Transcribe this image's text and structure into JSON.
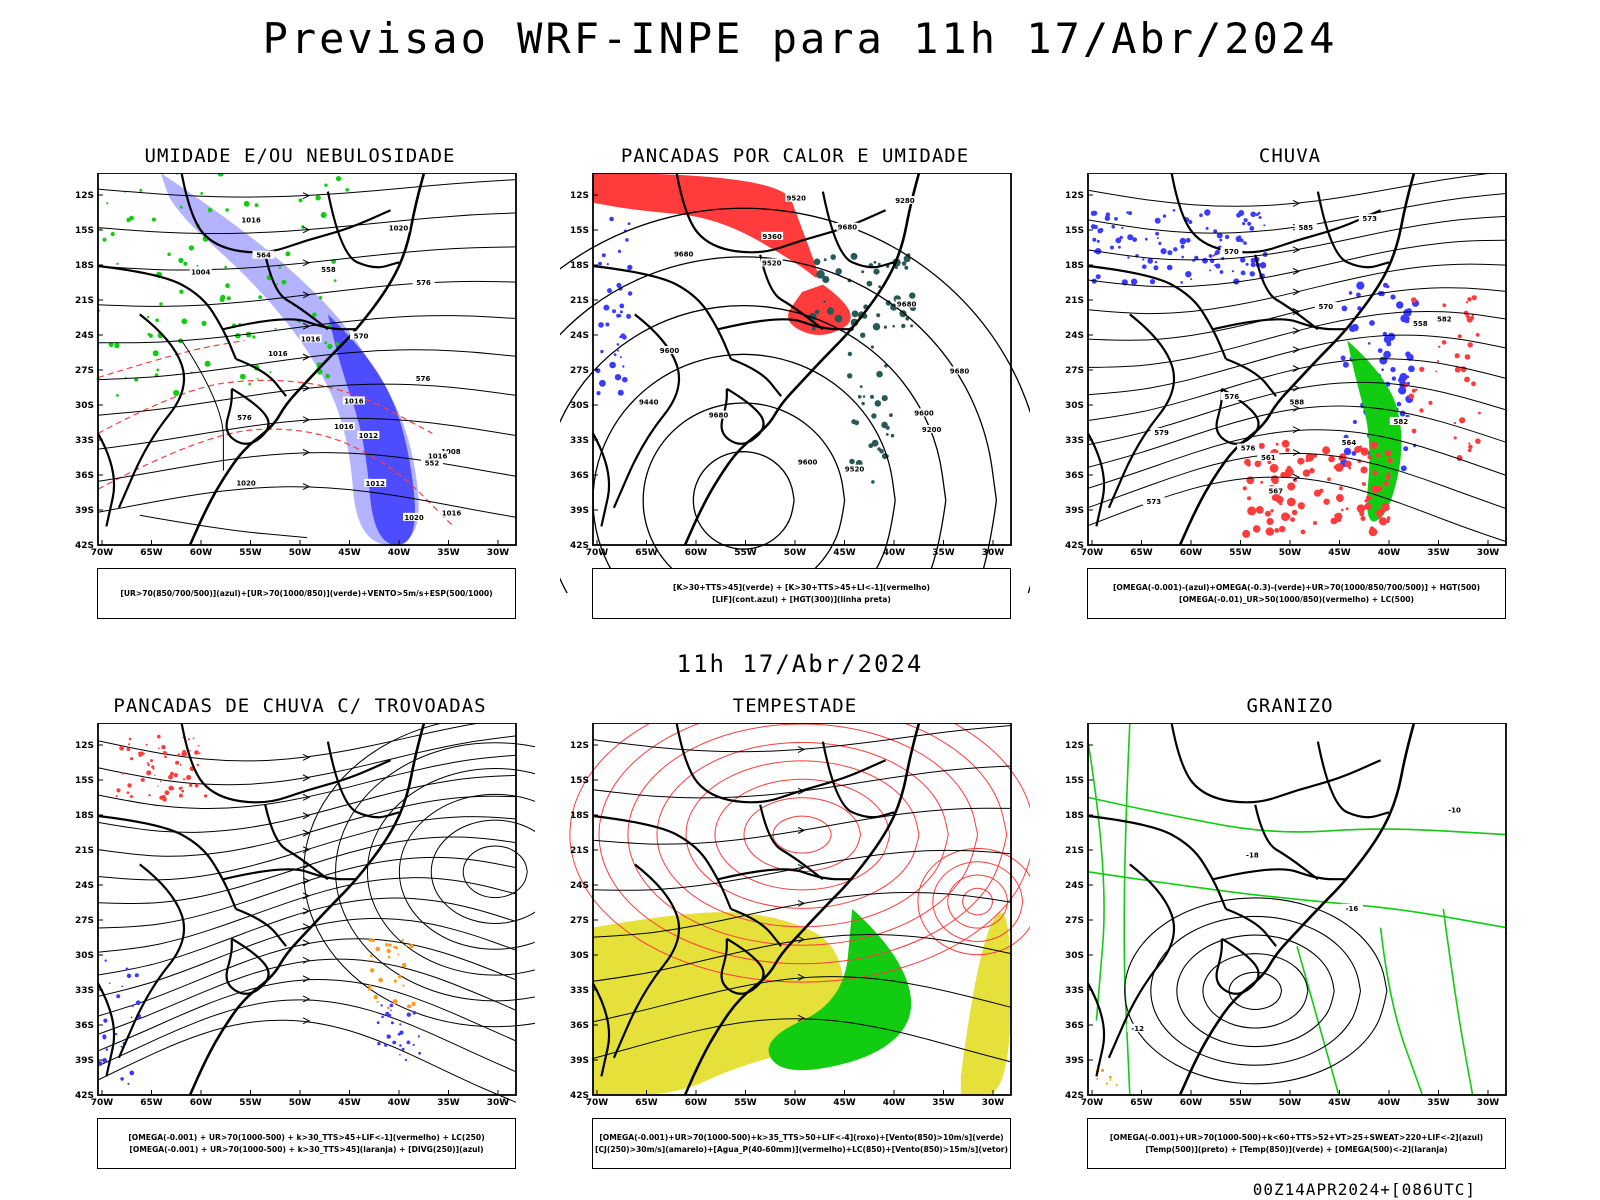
{
  "header": {
    "title": "Previsao WRF-INPE  para 11h 17/Abr/2024",
    "mid_title": "11h 17/Abr/2024",
    "footer": "00Z14APR2024+[086UTC]"
  },
  "axes": {
    "lat_labels": [
      "12S",
      "15S",
      "18S",
      "21S",
      "24S",
      "27S",
      "30S",
      "33S",
      "36S",
      "39S",
      "42S"
    ],
    "lon_labels": [
      "70W",
      "65W",
      "60W",
      "55W",
      "50W",
      "45W",
      "40W",
      "35W",
      "30W"
    ]
  },
  "panels": [
    {
      "id": "umidade",
      "title": "UMIDADE E/OU NEBULOSIDADE",
      "legend": [
        "[UR>70(850/700/500)](azul)+[UR>70(1000/850)](verde)+VENTO>5m/s+ESP(500/1000)"
      ],
      "contour_labels": [
        "1016",
        "1012",
        "1020",
        "1016",
        "1016",
        "1016",
        "1020",
        "1012",
        "1008",
        "1004",
        "1020",
        "1016",
        "1016",
        "1016",
        "576",
        "576",
        "570",
        "564",
        "558",
        "552",
        "576"
      ]
    },
    {
      "id": "pancadas-calor",
      "title": "PANCADAS POR CALOR E UMIDADE",
      "legend": [
        "[K>30+TTS>45](verde) + [K>30+TTS>45+LI<-1](vermelho)",
        "[LIF](cont.azul) + [HGT(300)](linha preta)"
      ],
      "contour_labels": [
        "9680",
        "9680",
        "9680",
        "9680",
        "9600",
        "9520",
        "9600",
        "9520",
        "9440",
        "9360",
        "9280",
        "9200",
        "9600",
        "9520",
        "9680"
      ]
    },
    {
      "id": "chuva",
      "title": "CHUVA",
      "legend": [
        "[OMEGA(-0.001)-(azul)+OMEGA(-0.3)-(verde)+UR>70(1000/850/700/500)] + HGT(500)",
        "[OMEGA(-0.01)_UR>50(1000/850)(vermelho) + LC(500)"
      ],
      "contour_labels": [
        "582",
        "585",
        "588",
        "579",
        "576",
        "573",
        "570",
        "567",
        "564",
        "561",
        "558",
        "576",
        "573",
        "570",
        "582"
      ]
    },
    {
      "id": "pancadas-trovoadas",
      "title": "PANCADAS DE CHUVA C/ TROVOADAS",
      "legend": [
        "[OMEGA(-0.001) + UR>70(1000-500) + k>30_TTS>45+LIF<-1](vermelho) + LC(250)",
        "[OMEGA(-0.001) + UR>70(1000-500) + k>30_TTS>45](laranja) + [DIVG(250)](azul)"
      ],
      "contour_labels": []
    },
    {
      "id": "tempestade",
      "title": "TEMPESTADE",
      "legend": [
        "[OMEGA(-0.001)+UR>70(1000-500)+k>35_TTS>50+LIF<-4](roxo)+[Vento(850)>10m/s](verde)",
        "[CJ(250)>30m/s](amarelo)+[Agua_P(40-60mm)](vermelho)+LC(850)+[Vento(850)>15m/s](vetor)"
      ],
      "contour_labels": []
    },
    {
      "id": "granizo",
      "title": "GRANIZO",
      "legend": [
        "[OMEGA(-0.001)+UR>70(1000-500)+k<60+TTS>52+VT>25+SWEAT>220+LIF<-2](azul)",
        "[Temp(500)](preto) + [Temp(850)](verde) + [OMEGA(500)<-2](laranja)"
      ],
      "contour_labels": [
        "-12",
        "-16",
        "-18",
        "-10"
      ]
    }
  ],
  "colors": {
    "blue_fill": "#3b3bff",
    "light_blue_fill": "#9a9aff",
    "green": "#11cc11",
    "red": "#ff3b3b",
    "dark_teal": "#285a55",
    "yellow": "#e6e03a",
    "orange": "#ff9a1e"
  }
}
